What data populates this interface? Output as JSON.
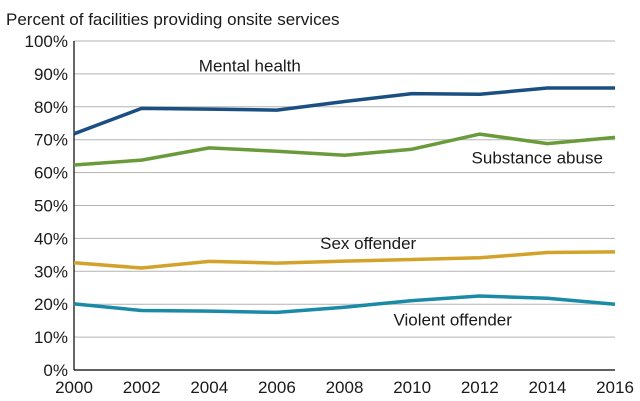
{
  "chart_data": {
    "type": "line",
    "title": "Percent of facilities providing onsite services",
    "xlabel": "",
    "ylabel": "",
    "x": [
      2000,
      2002,
      2004,
      2006,
      2008,
      2010,
      2012,
      2014,
      2016
    ],
    "xlim": [
      2000,
      2016
    ],
    "ylim": [
      0,
      100
    ],
    "x_ticks": [
      "2000",
      "2002",
      "2004",
      "2006",
      "2008",
      "2010",
      "2012",
      "2014",
      "2016"
    ],
    "y_ticks": [
      "0%",
      "10%",
      "20%",
      "30%",
      "40%",
      "50%",
      "60%",
      "70%",
      "80%",
      "90%",
      "100%"
    ],
    "grid": "horizontal",
    "legend": "none (series labeled directly on lines)",
    "series": [
      {
        "name": "Mental health",
        "color": "#1b4f82",
        "values": [
          71.8,
          79.5,
          79.3,
          79.0,
          81.6,
          84.0,
          83.8,
          85.7,
          85.7
        ]
      },
      {
        "name": "Substance abuse",
        "color": "#6a9b3a",
        "values": [
          62.3,
          63.8,
          67.5,
          66.5,
          65.3,
          67.1,
          71.7,
          68.8,
          70.7
        ]
      },
      {
        "name": "Sex offender",
        "color": "#d3a22a",
        "values": [
          32.6,
          31.0,
          33.0,
          32.5,
          33.1,
          33.6,
          34.1,
          35.7,
          35.9
        ]
      },
      {
        "name": "Violent offender",
        "color": "#1a8aa6",
        "values": [
          20.1,
          18.1,
          17.9,
          17.5,
          19.1,
          21.1,
          22.5,
          21.8,
          20.0
        ]
      }
    ]
  }
}
